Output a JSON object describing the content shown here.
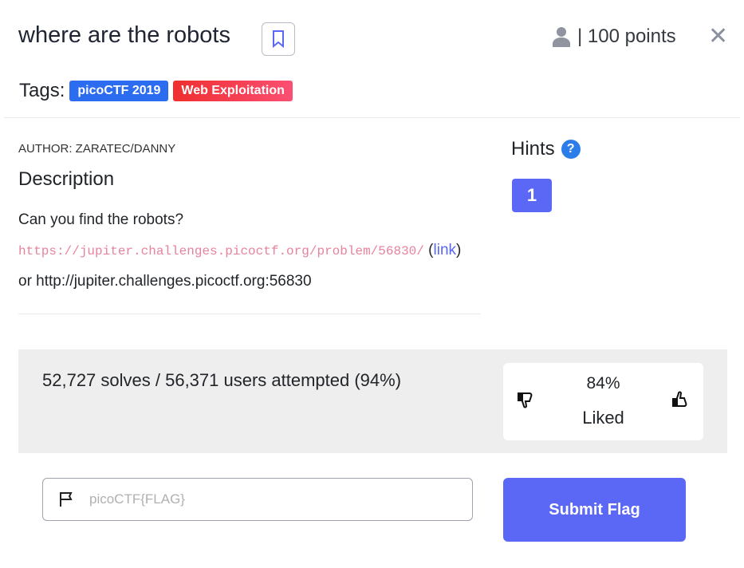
{
  "header": {
    "title": "where are the robots",
    "points": "| 100 points",
    "close": "✕",
    "bookmark_icon": "bookmark-icon",
    "user_icon": "user-icon"
  },
  "tags": {
    "label": "Tags:",
    "items": [
      {
        "label": "picoCTF 2019",
        "color": "#2b6cf0"
      },
      {
        "label": "Web Exploitation",
        "color": "#f0363f"
      }
    ]
  },
  "description": {
    "author": "AUTHOR: ZARATEC/DANNY",
    "heading": "Description",
    "question": "Can you find the robots?",
    "url": "https://jupiter.challenges.picoctf.org/problem/56830/",
    "link_open": " (",
    "link_label": "link",
    "link_close": ")",
    "alt": "or http://jupiter.challenges.picoctf.org:56830"
  },
  "hints": {
    "heading": "Hints",
    "help": "?",
    "items": [
      "1"
    ]
  },
  "stats": {
    "solves": "52,727 solves / 56,371 users attempted (94%)",
    "liked_pct": "84%",
    "liked_label": "Liked"
  },
  "flag": {
    "placeholder": "picoCTF{FLAG}",
    "submit": "Submit Flag"
  },
  "colors": {
    "accent": "#5b68f6",
    "stats_bg": "#eeeeee"
  }
}
